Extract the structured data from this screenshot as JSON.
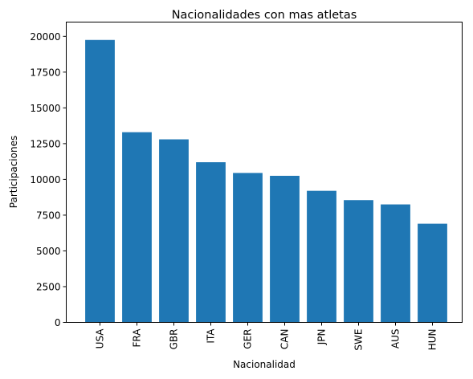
{
  "chart_data": {
    "type": "bar",
    "title": "Nacionalidades con mas atletas",
    "xlabel": "Nacionalidad",
    "ylabel": "Participaciones",
    "categories": [
      "USA",
      "FRA",
      "GBR",
      "ITA",
      "GER",
      "CAN",
      "JPN",
      "SWE",
      "AUS",
      "HUN"
    ],
    "values": [
      19750,
      13300,
      12800,
      11200,
      10450,
      10250,
      9200,
      8550,
      8250,
      6900
    ],
    "ylim": [
      0,
      21000
    ],
    "yticks": [
      0,
      2500,
      5000,
      7500,
      10000,
      12500,
      15000,
      17500,
      20000
    ],
    "ytick_labels": [
      "0",
      "2500",
      "5000",
      "7500",
      "10000",
      "12500",
      "15000",
      "17500",
      "20000"
    ],
    "xtick_rotation": "vertical",
    "grid": false,
    "legend": "none",
    "colors": {
      "bar": "#1f77b4"
    }
  }
}
